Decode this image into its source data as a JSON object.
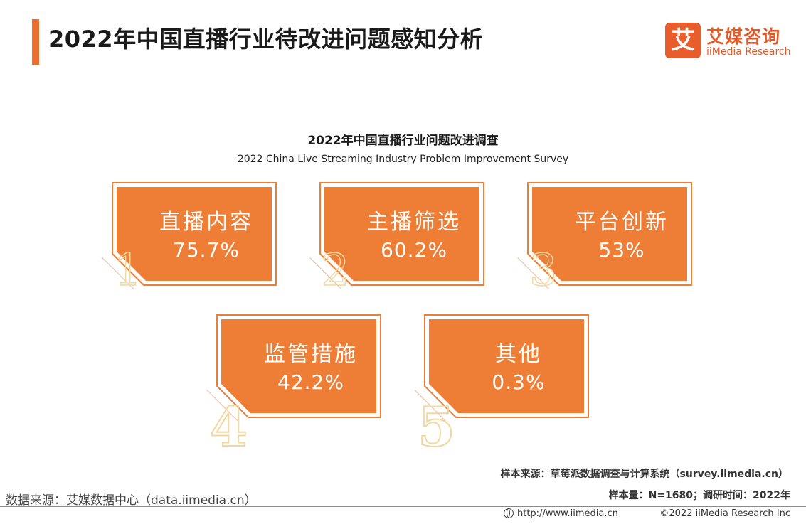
{
  "page": {
    "title": "2022年中国直播行业待改进问题感知分析"
  },
  "logo": {
    "mark": "艾",
    "name_cn": "艾媒咨询",
    "name_en": "iiMedia Research"
  },
  "colors": {
    "accent": "#ec6e2d",
    "card_fill": "#ee7d35",
    "rank_outline": "#f1d8a0"
  },
  "chart_data": {
    "type": "table",
    "title": "2022年中国直播行业问题改进调查",
    "subtitle": "2022 China Live Streaming Industry Problem Improvement Survey",
    "items": [
      {
        "rank": "1",
        "label": "直播内容",
        "value": 75.7,
        "value_text": "75.7%"
      },
      {
        "rank": "2",
        "label": "主播筛选",
        "value": 60.2,
        "value_text": "60.2%"
      },
      {
        "rank": "3",
        "label": "平台创新",
        "value": 53.0,
        "value_text": "53%"
      },
      {
        "rank": "4",
        "label": "监管措施",
        "value": 42.2,
        "value_text": "42.2%"
      },
      {
        "rank": "5",
        "label": "其他",
        "value": 0.3,
        "value_text": "0.3%"
      }
    ]
  },
  "notes": {
    "sample_source": "样本来源：草莓派数据调查与计算系统（survey.iimedia.cn）",
    "sample_size": "样本量：N=1680；调研时间：2022年"
  },
  "footer": {
    "data_source": "数据来源：艾媒数据中心（data.iimedia.cn）",
    "url": "http://www.iimedia.cn",
    "copyright": "©2022  iiMedia Research  Inc"
  }
}
